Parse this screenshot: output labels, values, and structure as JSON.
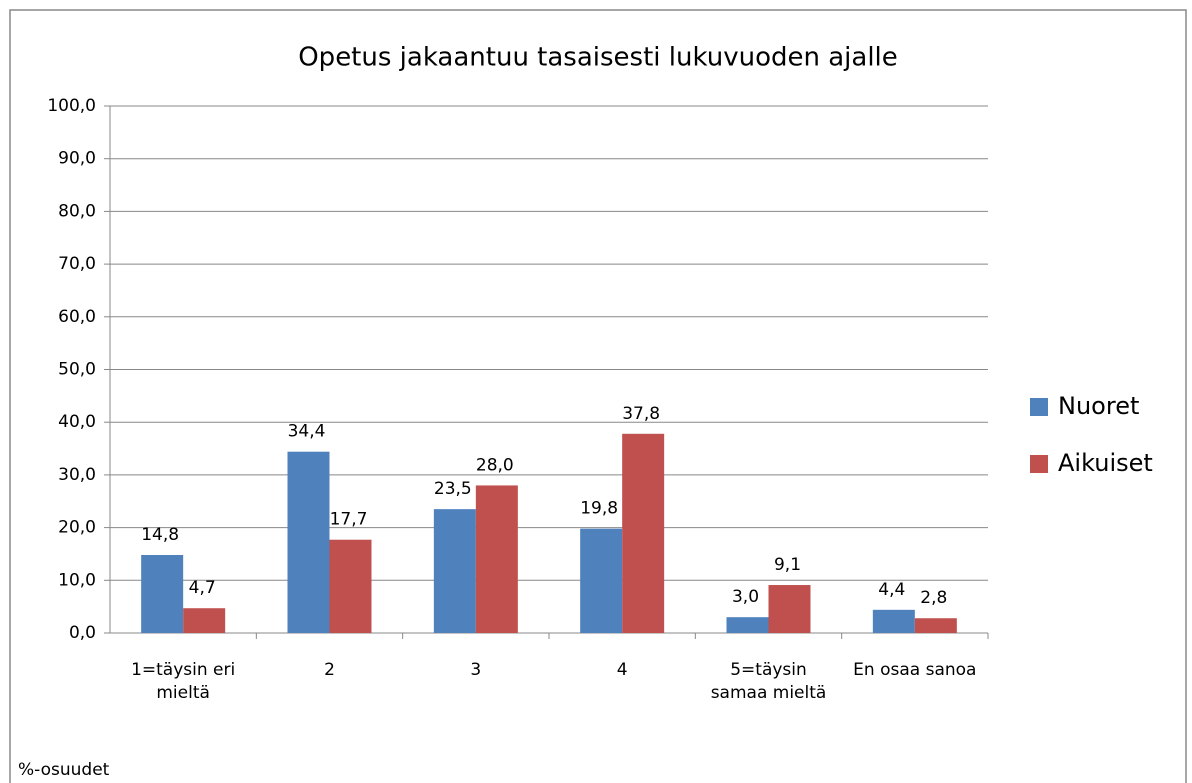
{
  "chart_data": {
    "type": "bar",
    "title": "Opetus jakaantuu tasaisesti lukuvuoden ajalle",
    "categories": [
      "1=täysin eri mieltä",
      "2",
      "3",
      "4",
      "5=täysin samaa mieltä",
      "En osaa sanoa"
    ],
    "series": [
      {
        "name": "Nuoret",
        "color": "#4f81bd",
        "values": [
          14.8,
          34.4,
          23.5,
          19.8,
          3.0,
          4.4
        ],
        "value_labels": [
          "14,8",
          "34,4",
          "23,5",
          "19,8",
          "3,0",
          "4,4"
        ]
      },
      {
        "name": "Aikuiset",
        "color": "#c0504d",
        "values": [
          4.7,
          17.7,
          28.0,
          37.8,
          9.1,
          2.8
        ],
        "value_labels": [
          "4,7",
          "17,7",
          "28,0",
          "37,8",
          "9,1",
          "2,8"
        ]
      }
    ],
    "ylim": [
      0,
      100
    ],
    "yticks": [
      {
        "value": 0,
        "label": "0,0"
      },
      {
        "value": 10,
        "label": "10,0"
      },
      {
        "value": 20,
        "label": "20,0"
      },
      {
        "value": 30,
        "label": "30,0"
      },
      {
        "value": 40,
        "label": "40,0"
      },
      {
        "value": 50,
        "label": "50,0"
      },
      {
        "value": 60,
        "label": "60,0"
      },
      {
        "value": 70,
        "label": "70,0"
      },
      {
        "value": 80,
        "label": "80,0"
      },
      {
        "value": 90,
        "label": "90,0"
      },
      {
        "value": 100,
        "label": "100,0"
      }
    ],
    "grid": true,
    "legend": "right",
    "annotation": "%-osuudet"
  }
}
